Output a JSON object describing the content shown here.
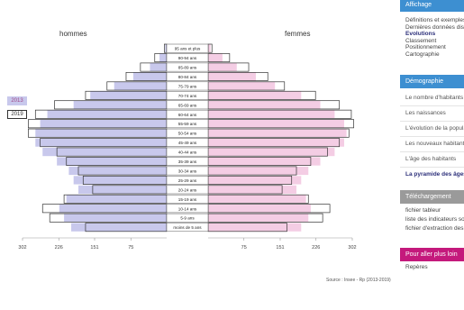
{
  "chart_data": {
    "type": "bar",
    "orientation": "horizontal-pyramid",
    "left_label": "hommes",
    "right_label": "femmes",
    "age_groups": [
      "95 ans et plus",
      "90-94 ans",
      "85-89 ans",
      "80-84 ans",
      "75-79 ans",
      "70-74 ans",
      "65-69 ans",
      "60-64 ans",
      "55-59 ans",
      "50-54 ans",
      "45-49 ans",
      "40-44 ans",
      "35-39 ans",
      "30-34 ans",
      "25-29 ans",
      "20-24 ans",
      "15-19 ans",
      "10-14 ans",
      "5-9 ans",
      "moins de 5 ans"
    ],
    "series": [
      {
        "name": "2013",
        "men": [
          3,
          15,
          35,
          70,
          110,
          160,
          195,
          250,
          265,
          275,
          275,
          260,
          230,
          205,
          195,
          185,
          210,
          225,
          215,
          200
        ],
        "women": [
          5,
          30,
          60,
          100,
          140,
          195,
          235,
          265,
          285,
          290,
          285,
          265,
          235,
          210,
          195,
          185,
          205,
          215,
          210,
          195
        ]
      },
      {
        "name": "2019",
        "men": [
          5,
          25,
          55,
          85,
          125,
          170,
          235,
          275,
          290,
          290,
          265,
          230,
          210,
          185,
          175,
          155,
          215,
          260,
          245,
          170
        ],
        "women": [
          8,
          45,
          85,
          125,
          160,
          225,
          275,
          300,
          305,
          295,
          275,
          250,
          215,
          185,
          175,
          155,
          210,
          255,
          240,
          165
        ]
      }
    ],
    "x_ticks_left": [
      "302",
      "226",
      "151",
      "75"
    ],
    "x_ticks_right": [
      "75",
      "151",
      "226",
      "302"
    ],
    "xlim": [
      0,
      302
    ],
    "colors": {
      "men_2013": "#c8c8ec",
      "women_2013": "#f4cde4",
      "outline_2019": "#333333"
    },
    "legend": [
      "2013",
      "2019"
    ],
    "legend_position": "left"
  },
  "source_text": "Source : Insee - Rp (2013-2019)",
  "sidebar": {
    "affichage": {
      "header": "Affichage",
      "items": [
        {
          "label": "Définitions et exemples",
          "active": false
        },
        {
          "label": "Dernières données disponibles",
          "active": false
        },
        {
          "label": "Evolutions",
          "active": true
        },
        {
          "label": "Classement",
          "active": false
        },
        {
          "label": "Positionnement",
          "active": false
        },
        {
          "label": "Cartographie",
          "active": false
        }
      ]
    },
    "demographie": {
      "header": "Démographie",
      "items": [
        {
          "label": "Le nombre d'habitants",
          "active": false
        },
        {
          "label": "Les naissances",
          "active": false
        },
        {
          "label": "L'évolution de la population",
          "active": false
        },
        {
          "label": "Les nouveaux habitants",
          "active": false
        },
        {
          "label": "L'âge des habitants",
          "active": false
        },
        {
          "label": "La pyramide des âges",
          "active": true
        }
      ]
    },
    "telechargement": {
      "header": "Téléchargement",
      "items": [
        {
          "label": "fichier tableur"
        },
        {
          "label": "liste des indicateurs sources"
        },
        {
          "label": "fichier d'extraction des données"
        }
      ]
    },
    "plus_loin": {
      "header": "Pour aller plus loin",
      "items": [
        {
          "label": "Repères"
        }
      ]
    }
  }
}
